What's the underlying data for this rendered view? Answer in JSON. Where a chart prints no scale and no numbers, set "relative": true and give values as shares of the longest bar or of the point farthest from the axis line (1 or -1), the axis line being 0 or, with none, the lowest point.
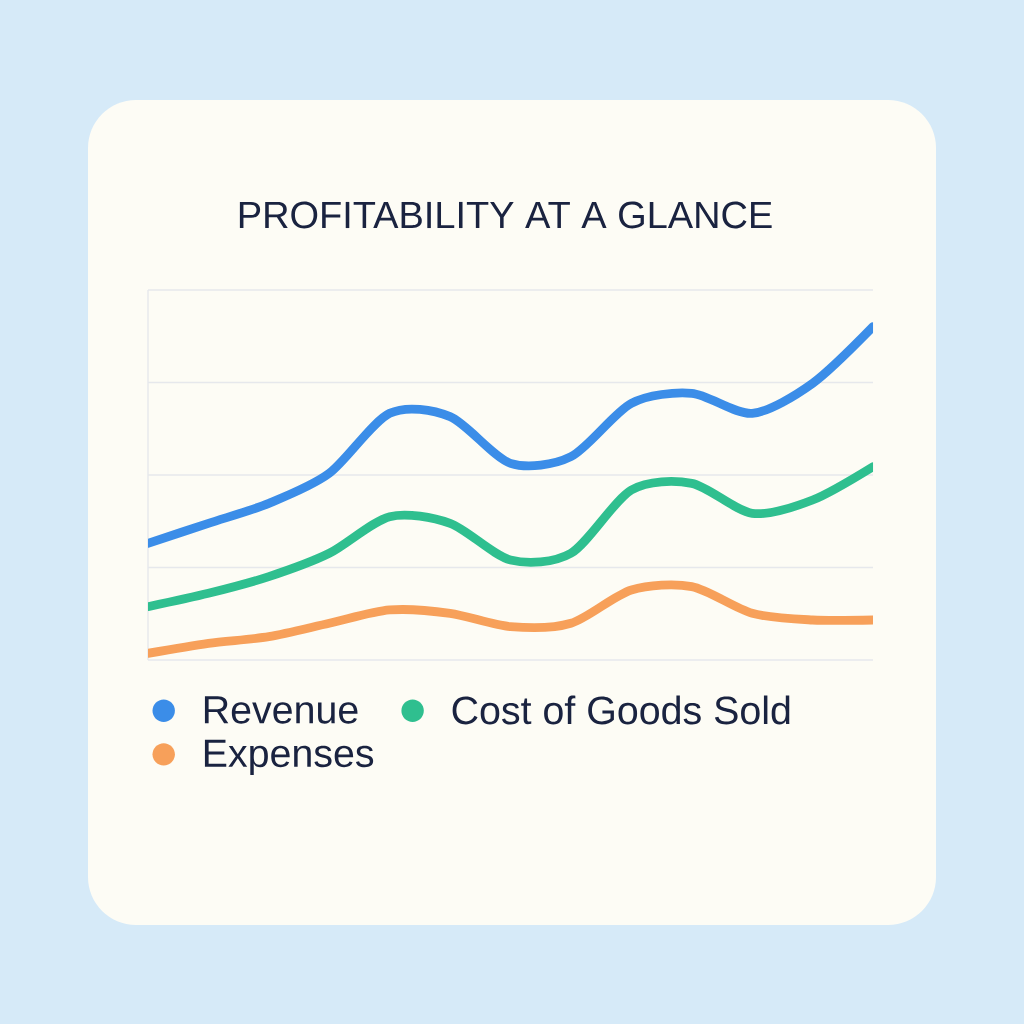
{
  "chart_data": {
    "type": "line",
    "title": "PROFITABILITY AT A GLANCE",
    "relative": true,
    "grid": "y",
    "legend": "bottom left",
    "marker": "none",
    "line_style": "solid",
    "categories": [
      null,
      null,
      null,
      null,
      null,
      null,
      null,
      null,
      null,
      null,
      null,
      null,
      null
    ],
    "series": [
      {
        "name": "Revenue",
        "color": "#3b8de8",
        "values": [
          0.35,
          0.41,
          0.47,
          0.56,
          0.74,
          0.73,
          0.59,
          0.61,
          0.77,
          0.8,
          0.74,
          0.83,
          1
        ]
      },
      {
        "name": "Cost of Goods Sold",
        "color": "#2fbf8f",
        "values": [
          0.16,
          0.2,
          0.25,
          0.32,
          0.43,
          0.41,
          0.3,
          0.32,
          0.51,
          0.53,
          0.44,
          0.48,
          0.58
        ]
      },
      {
        "name": "Expenses",
        "color": "#f7a05a",
        "values": [
          0.02,
          0.05,
          0.07,
          0.11,
          0.15,
          0.14,
          0.1,
          0.11,
          0.21,
          0.22,
          0.14,
          0.12,
          0.12
        ]
      }
    ]
  }
}
